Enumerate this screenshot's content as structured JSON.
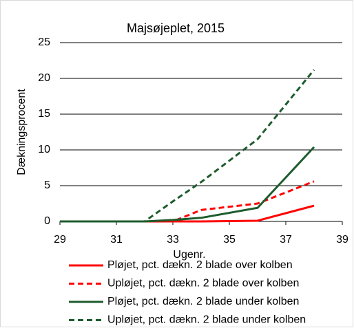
{
  "chart_data": {
    "type": "line",
    "title": "Majsøjeplet, 2015",
    "x_label": "Ugenr.",
    "y_label": "Dækningsprocent",
    "x": [
      29,
      30,
      31,
      32,
      33,
      34,
      36,
      38
    ],
    "series": [
      {
        "name": "Pløjet, pct. dækn. 2 blade over kolben",
        "color": "#ff0000",
        "dashed": false,
        "values": [
          0,
          0,
          0,
          0,
          0,
          0,
          0.1,
          2.2
        ]
      },
      {
        "name": "Upløjet, pct. dækn. 2 blade over kolben",
        "color": "#ff0000",
        "dashed": true,
        "values": [
          0,
          0,
          0,
          0,
          0,
          1.6,
          2.5,
          5.6
        ]
      },
      {
        "name": "Pløjet, pct. dækn. 2 blade under kolben",
        "color": "#1e5c2e",
        "dashed": false,
        "values": [
          0,
          0,
          0,
          0,
          0.2,
          0.5,
          1.9,
          10.4
        ]
      },
      {
        "name": "Upløjet, pct. dækn. 2 blade under kolben",
        "color": "#1e5c2e",
        "dashed": true,
        "values": [
          0,
          0,
          0,
          0,
          2.8,
          5.5,
          11.5,
          21.2
        ]
      }
    ],
    "xlim": [
      29,
      39
    ],
    "xticks": [
      29,
      31,
      33,
      35,
      37,
      39
    ],
    "ylim": [
      0,
      25
    ],
    "yticks": [
      0,
      5,
      10,
      15,
      20,
      25
    ],
    "grid": true
  }
}
